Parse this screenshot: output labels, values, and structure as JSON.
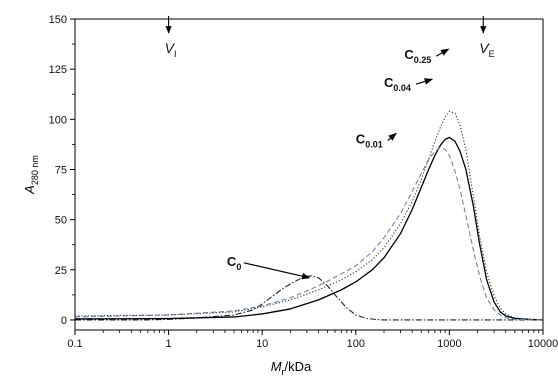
{
  "chart_data": {
    "type": "line",
    "title": "",
    "xlabel": {
      "main": "M",
      "sub": "r",
      "suffix": "/kDa"
    },
    "ylabel": {
      "main": "A",
      "sub": "280 nm"
    },
    "x_scale": "log",
    "xlim": [
      0.1,
      10000
    ],
    "ylim": [
      -5,
      150
    ],
    "x_ticks": [
      0.1,
      1,
      10,
      100,
      1000,
      10000
    ],
    "x_tick_labels": [
      "0.1",
      "1",
      "10",
      "100",
      "1000",
      "10000"
    ],
    "y_ticks": [
      0,
      25,
      50,
      75,
      100,
      125,
      150
    ],
    "y_tick_labels": [
      "0",
      "25",
      "50",
      "75",
      "100",
      "125",
      "150"
    ],
    "grid": false,
    "legend": "none",
    "markers": [
      {
        "main": "V",
        "sub": "I",
        "x": 1
      },
      {
        "main": "V",
        "sub": "E",
        "x": 2300
      }
    ],
    "series": [
      {
        "name": {
          "main": "C",
          "sub": "0"
        },
        "style": "dashdot",
        "color": "#222222",
        "label_at": [
          4.2,
          27
        ],
        "arrow_to": [
          32,
          21
        ],
        "x": [
          0.1,
          0.5,
          1,
          2,
          5,
          8,
          10,
          13,
          17,
          22,
          28,
          33,
          40,
          50,
          60,
          80,
          100,
          130,
          160,
          200,
          500,
          1000,
          10000
        ],
        "y": [
          0,
          0,
          0.3,
          1,
          2.5,
          5,
          8,
          12,
          16,
          19,
          21.5,
          22,
          21,
          17,
          12.5,
          6,
          2.5,
          0.8,
          0.3,
          0,
          0,
          0,
          0
        ]
      },
      {
        "name": {
          "main": "C",
          "sub": "0.01"
        },
        "style": "solid",
        "color": "#000000",
        "label_at": [
          100,
          88
        ],
        "arrow_to": [
          270,
          93
        ],
        "x": [
          0.1,
          1,
          5,
          10,
          20,
          40,
          70,
          100,
          150,
          200,
          300,
          400,
          500,
          600,
          700,
          800,
          900,
          1000,
          1150,
          1300,
          1500,
          1800,
          2100,
          2500,
          3000,
          3500,
          4000,
          5000,
          7000,
          10000
        ],
        "y": [
          0.5,
          0.7,
          1.5,
          3,
          5.5,
          10,
          15,
          19,
          25,
          31,
          43,
          55,
          66,
          75,
          82,
          87,
          90,
          91,
          89,
          84,
          75,
          57,
          38,
          20,
          9,
          4,
          2,
          0.8,
          0.3,
          0
        ]
      },
      {
        "name": {
          "main": "C",
          "sub": "0.04"
        },
        "style": "dashed",
        "color": "#6f7fc4",
        "label_at": [
          200,
          116
        ],
        "arrow_to": [
          655,
          120
        ],
        "x": [
          0.1,
          1,
          5,
          10,
          20,
          40,
          70,
          100,
          150,
          200,
          300,
          400,
          500,
          600,
          700,
          800,
          900,
          1000,
          1150,
          1300,
          1500,
          1800,
          2100,
          2500,
          3000,
          3500,
          4000,
          5000,
          10000
        ],
        "y": [
          1.5,
          2.5,
          4.5,
          7,
          11,
          17,
          23,
          27,
          34,
          41,
          53,
          64,
          73,
          80,
          84,
          86,
          85,
          82,
          74,
          65,
          52,
          35,
          22,
          11,
          5,
          2.5,
          1,
          0.3,
          0
        ]
      },
      {
        "name": {
          "main": "C",
          "sub": "0.25"
        },
        "style": "dotted",
        "color": "#333333",
        "label_at": [
          330,
          130
        ],
        "arrow_to": [
          980,
          135
        ],
        "x": [
          0.1,
          1,
          5,
          10,
          20,
          40,
          70,
          100,
          150,
          200,
          300,
          400,
          500,
          600,
          700,
          800,
          900,
          1000,
          1150,
          1300,
          1500,
          1800,
          2100,
          2500,
          3000,
          3500,
          4000,
          5000,
          10000
        ],
        "y": [
          2,
          2.5,
          4,
          6.5,
          10,
          15,
          20,
          24,
          30,
          36,
          48,
          59,
          70,
          80,
          89,
          96,
          101,
          104,
          103,
          97,
          85,
          62,
          42,
          24,
          12,
          6,
          3,
          1,
          0
        ]
      }
    ]
  }
}
